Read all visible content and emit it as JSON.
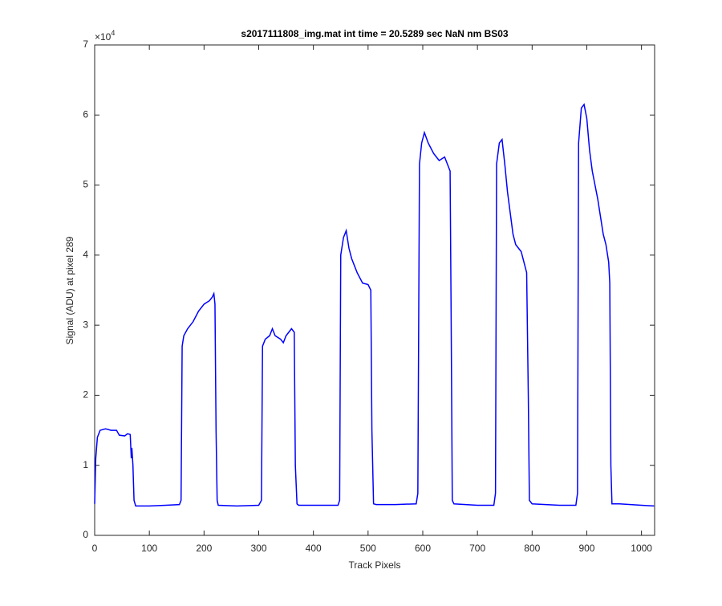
{
  "chart_data": {
    "type": "line",
    "title": "s2017111808_img.mat int time = 20.5289 sec  NaN nm BS03",
    "x_label": "Track Pixels",
    "y_label": "Signal (ADU) at pixel 289",
    "y_multiplier": {
      "base": "×10",
      "exponent": "4"
    },
    "xlim": [
      0,
      1024
    ],
    "xticks": [
      0,
      100,
      200,
      300,
      400,
      500,
      600,
      700,
      800,
      900,
      1000
    ],
    "ylim": [
      0,
      7
    ],
    "yticks": [
      0,
      1,
      2,
      3,
      4,
      5,
      6,
      7
    ],
    "series": [
      {
        "color": "#0000ff",
        "x": [
          0,
          2,
          5,
          10,
          20,
          30,
          40,
          45,
          55,
          60,
          65,
          67,
          68,
          70,
          72,
          75,
          100,
          130,
          155,
          158,
          160,
          163,
          170,
          180,
          190,
          200,
          210,
          215,
          218,
          220,
          222,
          224,
          226,
          260,
          300,
          305,
          307,
          312,
          320,
          325,
          330,
          340,
          345,
          350,
          360,
          365,
          367,
          370,
          373,
          400,
          445,
          448,
          450,
          455,
          460,
          465,
          470,
          480,
          490,
          500,
          505,
          507,
          510,
          515,
          550,
          588,
          591,
          594,
          598,
          603,
          610,
          620,
          630,
          640,
          650,
          652,
          654,
          657,
          700,
          730,
          733,
          735,
          740,
          745,
          750,
          755,
          760,
          765,
          770,
          780,
          785,
          790,
          793,
          795,
          800,
          850,
          880,
          883,
          885,
          890,
          895,
          900,
          905,
          910,
          920,
          930,
          935,
          940,
          942,
          944,
          946,
          960,
          1000,
          1023
        ],
        "values": [
          0.45,
          1.1,
          1.4,
          1.5,
          1.52,
          1.5,
          1.5,
          1.43,
          1.42,
          1.45,
          1.44,
          1.1,
          1.25,
          1.0,
          0.5,
          0.42,
          0.42,
          0.43,
          0.44,
          0.5,
          2.7,
          2.85,
          2.95,
          3.05,
          3.2,
          3.3,
          3.35,
          3.4,
          3.45,
          3.3,
          1.5,
          0.5,
          0.43,
          0.42,
          0.43,
          0.5,
          2.7,
          2.8,
          2.85,
          2.95,
          2.85,
          2.8,
          2.75,
          2.85,
          2.95,
          2.9,
          1.0,
          0.45,
          0.43,
          0.43,
          0.43,
          0.5,
          4.0,
          4.25,
          4.35,
          4.1,
          3.95,
          3.75,
          3.6,
          3.58,
          3.5,
          1.5,
          0.45,
          0.44,
          0.44,
          0.45,
          0.6,
          5.3,
          5.6,
          5.75,
          5.6,
          5.45,
          5.35,
          5.4,
          5.2,
          3.0,
          0.5,
          0.45,
          0.43,
          0.43,
          0.6,
          5.3,
          5.6,
          5.65,
          5.3,
          4.9,
          4.6,
          4.3,
          4.15,
          4.05,
          3.9,
          3.75,
          2.0,
          0.5,
          0.45,
          0.43,
          0.43,
          0.6,
          5.6,
          6.1,
          6.15,
          5.95,
          5.5,
          5.2,
          4.8,
          4.3,
          4.15,
          3.9,
          3.6,
          1.0,
          0.45,
          0.45,
          0.43,
          0.42
        ]
      }
    ]
  }
}
